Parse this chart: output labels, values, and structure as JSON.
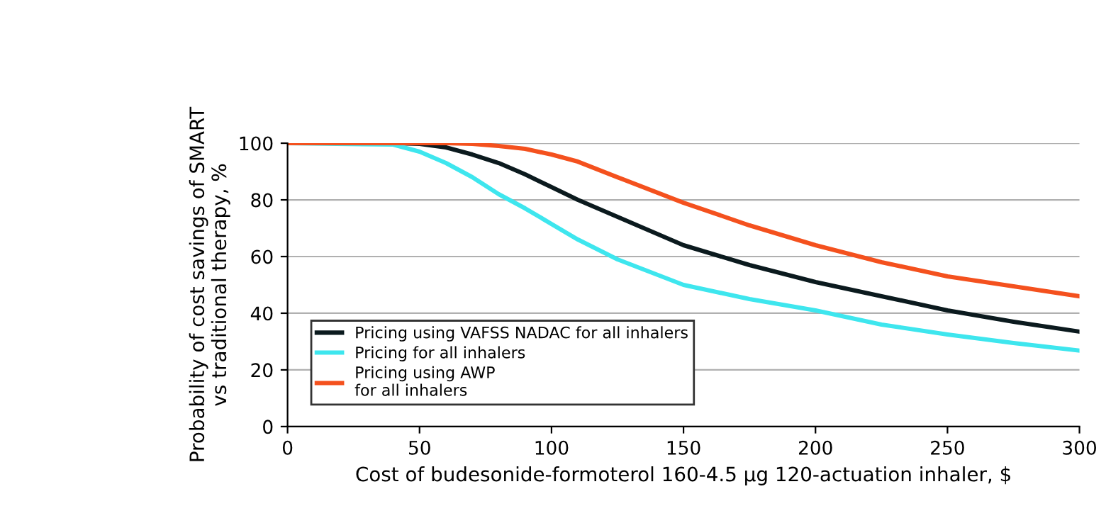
{
  "chart_data": {
    "type": "line",
    "xlabel": "Cost of budesonide-formoterol 160-4.5 µg 120-actuation inhaler, $",
    "ylabel": "Probability of cost savings of SMART\nvs traditional therapy, %",
    "x": [
      0,
      40,
      50,
      60,
      70,
      80,
      90,
      100,
      110,
      125,
      150,
      175,
      200,
      225,
      250,
      275,
      300
    ],
    "series": [
      {
        "name": "Pricing using VAFSS NADAC for all inhalers",
        "color": "#0b1a1e",
        "values": [
          100,
          100,
          99.8,
          98.5,
          96,
          93,
          89,
          84.5,
          80,
          74,
          64,
          57,
          51,
          46,
          41,
          37,
          33.5
        ]
      },
      {
        "name": "Pricing for all inhalers",
        "color": "#3ee6ee",
        "values": [
          100,
          99.5,
          97,
          93,
          88,
          82,
          77,
          71.5,
          66,
          59,
          50,
          45,
          41,
          36,
          32.5,
          29.5,
          26.8
        ]
      },
      {
        "name": "Pricing using AWP\nfor all inhalers",
        "color": "#f4511e",
        "values": [
          100,
          100,
          100,
          100,
          99.8,
          99,
          98,
          96,
          93.5,
          88,
          79,
          71,
          64,
          58,
          53,
          49.5,
          46
        ]
      }
    ],
    "xlim": [
      0,
      300
    ],
    "xticks": [
      0,
      50,
      100,
      150,
      200,
      250,
      300
    ],
    "ylim": [
      0,
      100
    ],
    "yticks": [
      0,
      20,
      40,
      60,
      80,
      100
    ],
    "grid": "y",
    "legend": "bottom left"
  }
}
